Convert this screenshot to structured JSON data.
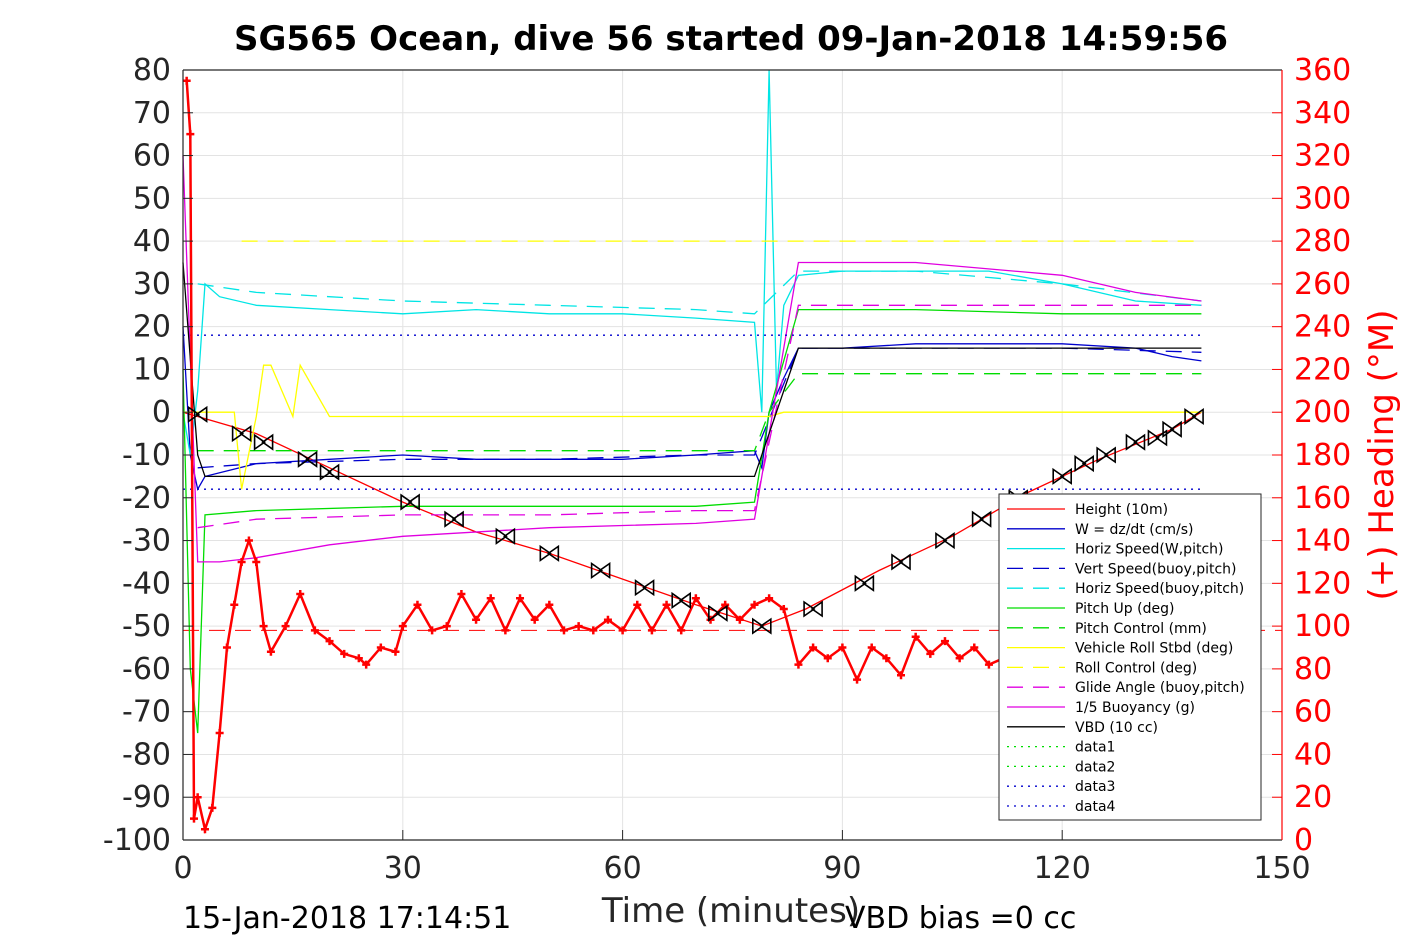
{
  "chart_data": {
    "type": "line",
    "title": "SG565 Ocean, dive 56 started 09-Jan-2018 14:59:56",
    "xlabel": "Time (minutes)",
    "ylabel": "",
    "ylabel_right": "(+) Heading (°M)",
    "xlim": [
      0,
      150
    ],
    "ylim": [
      -100,
      80
    ],
    "ylim_right": [
      0,
      360
    ],
    "xticks": [
      "0",
      "30",
      "60",
      "90",
      "120",
      "150"
    ],
    "yticks": [
      "80",
      "70",
      "60",
      "50",
      "40",
      "30",
      "20",
      "10",
      "0",
      "-10",
      "-20",
      "-30",
      "-40",
      "-50",
      "-60",
      "-70",
      "-80",
      "-90",
      "-100"
    ],
    "yticks_right": [
      "360",
      "340",
      "320",
      "300",
      "280",
      "260",
      "240",
      "220",
      "200",
      "180",
      "160",
      "140",
      "120",
      "100",
      "80",
      "60",
      "40",
      "20",
      "0"
    ],
    "grid": true,
    "legend_position": "lower-right",
    "footer_left": "15-Jan-2018 17:14:51",
    "footer_right": "VBD bias =0 cc",
    "colors": {
      "height": "#ff0000",
      "w": "#0000cd",
      "horiz_w": "#00e5e5",
      "vert_buoy": "#0000cd",
      "horiz_buoy": "#00e5e5",
      "pitch_up": "#00dd00",
      "pitch_ctrl": "#00dd00",
      "roll": "#ffff00",
      "roll_ctrl": "#ffff00",
      "glide": "#e000e0",
      "buoy": "#e000e0",
      "vbd": "#000000",
      "heading": "#ff0000"
    },
    "series": [
      {
        "name": "Height (10m)",
        "key": "height",
        "style": "solid",
        "x": [
          0,
          2,
          10,
          20,
          30,
          40,
          50,
          60,
          70,
          79,
          85,
          95,
          105,
          115,
          125,
          135,
          139
        ],
        "y": [
          0,
          -1,
          -5,
          -13,
          -21,
          -28,
          -33,
          -39,
          -45,
          -50,
          -46,
          -37,
          -29,
          -19,
          -11,
          -4,
          0
        ]
      },
      {
        "name": "W = dz/dt (cm/s)",
        "key": "w",
        "style": "solid",
        "x": [
          0,
          1,
          2,
          3,
          10,
          20,
          30,
          40,
          50,
          60,
          70,
          78,
          79,
          80,
          82,
          84,
          90,
          100,
          110,
          120,
          130,
          135,
          139
        ],
        "y": [
          20,
          -10,
          -18,
          -15,
          -12,
          -11,
          -10,
          -11,
          -11,
          -11,
          -10,
          -9,
          -13,
          0,
          8,
          15,
          15,
          16,
          16,
          16,
          15,
          13,
          12
        ]
      },
      {
        "name": "Horiz Speed(W,pitch)",
        "key": "horiz_w",
        "style": "solid",
        "x": [
          0,
          1,
          2,
          3,
          5,
          10,
          20,
          30,
          40,
          50,
          60,
          70,
          78,
          79,
          80,
          81,
          82,
          84,
          90,
          100,
          110,
          120,
          130,
          139
        ],
        "y": [
          0,
          -10,
          5,
          30,
          27,
          25,
          24,
          23,
          24,
          23,
          23,
          22,
          21,
          0,
          80,
          5,
          25,
          32,
          33,
          33,
          33,
          30,
          26,
          25
        ]
      },
      {
        "name": "Vert Speed(buoy,pitch)",
        "key": "vert_buoy",
        "style": "dashed",
        "x": [
          2,
          10,
          30,
          50,
          70,
          78,
          84,
          100,
          120,
          139
        ],
        "y": [
          -13,
          -12,
          -11,
          -11,
          -10,
          -10,
          15,
          15,
          15,
          14
        ]
      },
      {
        "name": "Horiz Speed(buoy,pitch)",
        "key": "horiz_buoy",
        "style": "dashed",
        "x": [
          2,
          10,
          30,
          50,
          70,
          78,
          84,
          100,
          120,
          139
        ],
        "y": [
          30,
          28,
          26,
          25,
          24,
          23,
          33,
          33,
          30,
          26
        ]
      },
      {
        "name": "Pitch Up (deg)",
        "key": "pitch_up",
        "style": "solid",
        "x": [
          0,
          1,
          2,
          3,
          10,
          30,
          50,
          70,
          78,
          80,
          84,
          100,
          120,
          139
        ],
        "y": [
          10,
          -60,
          -75,
          -24,
          -23,
          -22,
          -22,
          -22,
          -21,
          0,
          24,
          24,
          23,
          23
        ]
      },
      {
        "name": "Pitch Control (mm)",
        "key": "pitch_ctrl",
        "style": "dashed",
        "x": [
          2,
          78,
          80,
          84,
          139
        ],
        "y": [
          -9,
          -9,
          0,
          9,
          9
        ]
      },
      {
        "name": "Vehicle Roll Stbd (deg)",
        "key": "roll",
        "style": "solid",
        "x": [
          0,
          7,
          8,
          10,
          11,
          12,
          15,
          16,
          20,
          80,
          82,
          139
        ],
        "y": [
          0,
          0,
          -18,
          -1,
          11,
          11,
          -1,
          11,
          -1,
          -1,
          0,
          0
        ]
      },
      {
        "name": "Roll Control (deg)",
        "key": "roll_ctrl",
        "style": "dashed",
        "x": [
          8,
          139
        ],
        "y": [
          40,
          40
        ]
      },
      {
        "name": "Glide Angle (buoy,pitch)",
        "key": "glide",
        "style": "dashed",
        "x": [
          2,
          10,
          30,
          50,
          70,
          78,
          84,
          100,
          120,
          139
        ],
        "y": [
          -27,
          -25,
          -24,
          -24,
          -23,
          -23,
          25,
          25,
          25,
          25
        ]
      },
      {
        "name": "1/5 Buoyancy (g)",
        "key": "buoy",
        "style": "solid",
        "x": [
          0,
          2,
          5,
          10,
          20,
          30,
          50,
          70,
          78,
          84,
          100,
          120,
          130,
          139
        ],
        "y": [
          60,
          -35,
          -35,
          -34,
          -31,
          -29,
          -27,
          -26,
          -25,
          35,
          35,
          32,
          28,
          26
        ]
      },
      {
        "name": "VBD (10 cc)",
        "key": "vbd",
        "style": "solid",
        "x": [
          0,
          2,
          3,
          78,
          80,
          84,
          139
        ],
        "y": [
          35,
          -10,
          -15,
          -15,
          -5,
          15,
          15
        ]
      },
      {
        "name": "data1",
        "key": "data1",
        "style": "dotted",
        "x": [],
        "y": []
      },
      {
        "name": "data2",
        "key": "data2",
        "style": "dotted",
        "x": [],
        "y": []
      },
      {
        "name": "data3",
        "key": "data3",
        "style": "dotted",
        "x": [
          0,
          139
        ],
        "y": [
          -18,
          -18
        ]
      },
      {
        "name": "data4",
        "key": "data4",
        "style": "dotted",
        "x": [
          0,
          139
        ],
        "y": [
          18,
          18
        ]
      }
    ],
    "heading": {
      "axis": "right",
      "x": [
        0.5,
        1,
        1.5,
        2,
        3,
        4,
        5,
        6,
        7,
        8,
        9,
        10,
        11,
        12,
        14,
        16,
        18,
        20,
        22,
        24,
        25,
        27,
        29,
        30,
        32,
        34,
        36,
        38,
        40,
        42,
        44,
        46,
        48,
        50,
        52,
        54,
        56,
        58,
        60,
        62,
        64,
        66,
        68,
        70,
        72,
        74,
        76,
        78,
        80,
        82,
        84,
        86,
        88,
        90,
        92,
        94,
        96,
        98,
        100,
        102,
        104,
        106,
        108,
        110,
        112
      ],
      "y": [
        355,
        330,
        10,
        20,
        5,
        15,
        50,
        90,
        110,
        130,
        140,
        130,
        100,
        88,
        100,
        115,
        98,
        93,
        87,
        85,
        82,
        90,
        88,
        100,
        110,
        98,
        100,
        115,
        103,
        113,
        98,
        113,
        103,
        110,
        98,
        100,
        98,
        103,
        98,
        110,
        98,
        110,
        98,
        113,
        103,
        110,
        103,
        110,
        113,
        108,
        82,
        90,
        85,
        90,
        75,
        90,
        85,
        77,
        95,
        87,
        93,
        85,
        90,
        82,
        85
      ]
    },
    "heading_ref": {
      "axis": "right",
      "y": 98
    },
    "markers": {
      "x": [
        2,
        8,
        11,
        17,
        20,
        31,
        37,
        44,
        50,
        57,
        63,
        68,
        73,
        79,
        86,
        93,
        98,
        104,
        109,
        114,
        120,
        123,
        126,
        130,
        133,
        135,
        138
      ],
      "y": [
        -0.5,
        -5,
        -7,
        -11,
        -14,
        -21,
        -25,
        -29,
        -33,
        -37,
        -41,
        -44,
        -47,
        -50,
        -46,
        -40,
        -35,
        -30,
        -25,
        -20,
        -15,
        -12,
        -10,
        -7,
        -6,
        -4,
        -1
      ]
    }
  }
}
